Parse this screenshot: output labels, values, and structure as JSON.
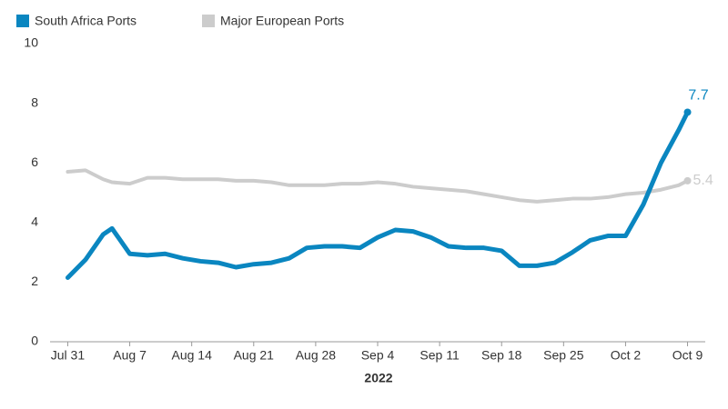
{
  "chart_data": {
    "type": "line",
    "xlabel": "2022",
    "x": [
      0,
      2,
      4,
      5,
      7,
      9,
      11,
      13,
      15,
      17,
      19,
      21,
      23,
      25,
      27,
      29,
      31,
      33,
      35,
      37,
      39,
      41,
      43,
      45,
      47,
      49,
      51,
      53,
      55,
      57,
      59,
      61,
      63,
      65,
      67,
      69,
      70
    ],
    "series": [
      {
        "name": "South Africa Ports",
        "color": "#0a86c0",
        "values": [
          2.15,
          2.75,
          3.6,
          3.8,
          2.95,
          2.9,
          2.95,
          2.8,
          2.7,
          2.65,
          2.5,
          2.6,
          2.65,
          2.8,
          3.15,
          3.2,
          3.2,
          3.15,
          3.5,
          3.75,
          3.7,
          3.5,
          3.2,
          3.15,
          3.15,
          3.05,
          2.55,
          2.55,
          2.65,
          3.0,
          3.4,
          3.55,
          3.55,
          4.6,
          6.0,
          7.1,
          7.7
        ]
      },
      {
        "name": "Major European Ports",
        "color": "#cccccc",
        "values": [
          5.7,
          5.75,
          5.45,
          5.35,
          5.3,
          5.5,
          5.5,
          5.45,
          5.45,
          5.45,
          5.4,
          5.4,
          5.35,
          5.25,
          5.25,
          5.25,
          5.3,
          5.3,
          5.35,
          5.3,
          5.2,
          5.15,
          5.1,
          5.05,
          4.95,
          4.85,
          4.75,
          4.7,
          4.75,
          4.8,
          4.8,
          4.85,
          4.95,
          5.0,
          5.1,
          5.25,
          5.4
        ]
      }
    ],
    "xlim": [
      -2,
      72
    ],
    "xticks": [
      {
        "value": 0,
        "label": "Jul 31"
      },
      {
        "value": 7,
        "label": "Aug 7"
      },
      {
        "value": 14,
        "label": "Aug 14"
      },
      {
        "value": 21,
        "label": "Aug 21"
      },
      {
        "value": 28,
        "label": "Aug 28"
      },
      {
        "value": 35,
        "label": "Sep 4"
      },
      {
        "value": 42,
        "label": "Sep 11"
      },
      {
        "value": 49,
        "label": "Sep 18"
      },
      {
        "value": 56,
        "label": "Sep 25"
      },
      {
        "value": 63,
        "label": "Oct 2"
      },
      {
        "value": 70,
        "label": "Oct 9"
      }
    ],
    "ylim": [
      0,
      10
    ],
    "yticks": [
      0,
      2,
      4,
      6,
      8,
      10
    ],
    "grid": false,
    "legend": "top-left"
  }
}
